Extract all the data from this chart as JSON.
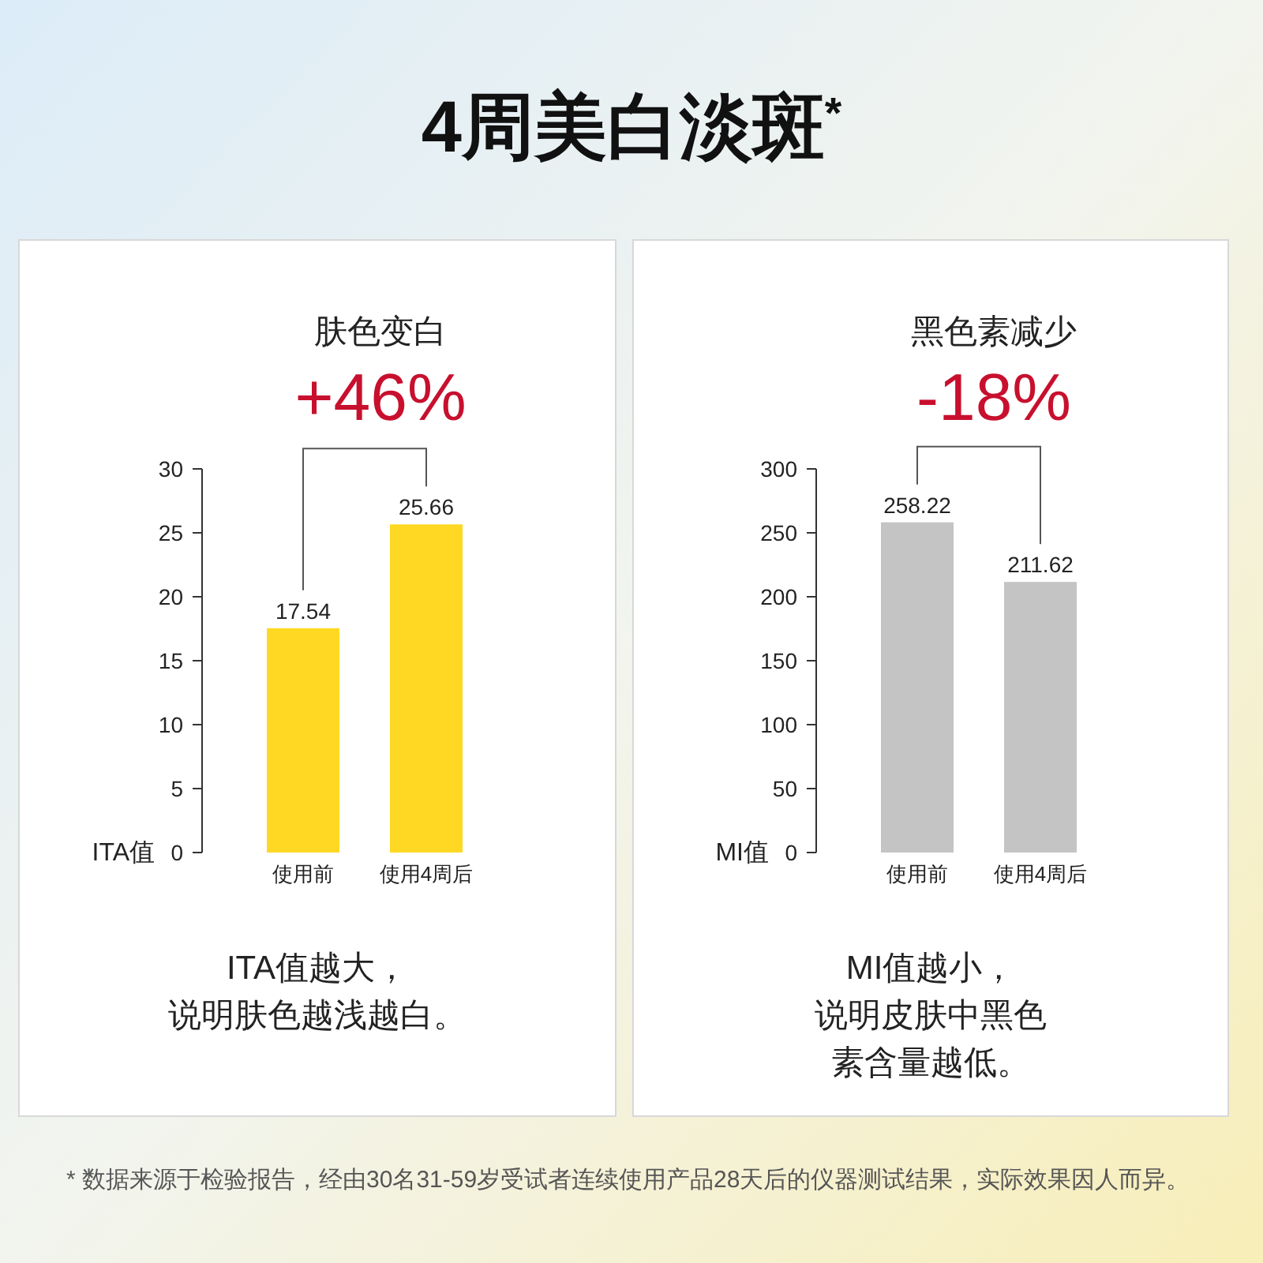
{
  "chart_data": [
    {
      "type": "bar",
      "title": "肤色变白",
      "subtitle": "+46%",
      "ylabel": "ITA值",
      "categories": [
        "使用前",
        "使用4周后"
      ],
      "values": [
        17.54,
        25.66
      ],
      "color": "#ffd823",
      "ylim": [
        0,
        30
      ],
      "yticks": [
        0,
        5,
        10,
        15,
        20,
        25,
        30
      ],
      "data_labels": true,
      "annotations": [
        "ITA值越大，说明肤色越浅越白。",
        "4周美白淡斑$^{*}$"
      ]
    },
    {
      "type": "bar",
      "title": "黑色素减少",
      "subtitle": "-18%",
      "ylabel": "MI值",
      "categories": [
        "使用前",
        "使用4周后"
      ],
      "values": [
        258.22,
        211.62
      ],
      "color": "#c4c4c4",
      "ylim": [
        0,
        300
      ],
      "yticks": [
        0,
        50,
        100,
        150,
        200,
        250,
        300
      ],
      "data_labels": true,
      "annotations": [
        "MI值越小，说明皮肤中黑色素含量越低。",
        "* 数据来源于检验报告，经由30名31-59岁受试者连续使用产品28天后的仪器测试结果，实际效果因人而异。"
      ]
    }
  ]
}
